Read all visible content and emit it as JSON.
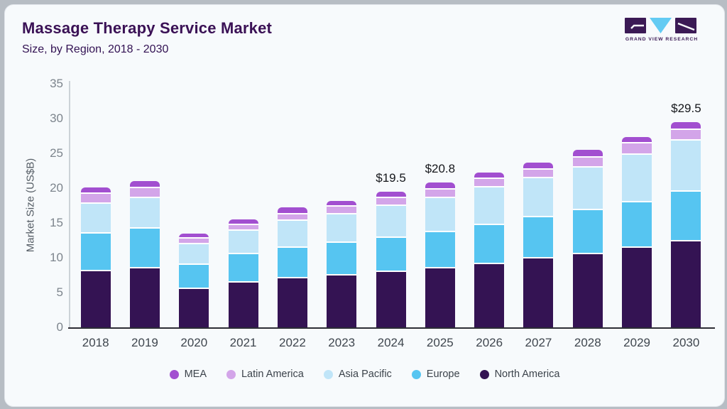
{
  "header": {
    "logo_text": "GRAND VIEW RESEARCH",
    "logo_colors": {
      "purple": "#3b1a55",
      "blue": "#63cbf3"
    }
  },
  "chart_data": {
    "type": "bar",
    "variant": "stacked",
    "title": "Massage Therapy Service Market",
    "subtitle": "Size, by Region, 2018 - 2030",
    "ylabel": "Market Size (US$B)",
    "ylim": [
      0,
      35
    ],
    "yticks": [
      0,
      5,
      10,
      15,
      20,
      25,
      30,
      35
    ],
    "grid": false,
    "legend_position": "bottom",
    "categories": [
      "2018",
      "2019",
      "2020",
      "2021",
      "2022",
      "2023",
      "2024",
      "2025",
      "2026",
      "2027",
      "2028",
      "2029",
      "2030"
    ],
    "series": [
      {
        "name": "North America",
        "color": "#341353",
        "values": [
          8.1,
          8.5,
          5.5,
          6.4,
          7.0,
          7.5,
          8.0,
          8.5,
          9.1,
          9.9,
          10.5,
          11.4,
          12.3
        ]
      },
      {
        "name": "Europe",
        "color": "#56c5f1",
        "values": [
          5.4,
          5.7,
          3.5,
          4.1,
          4.4,
          4.6,
          4.9,
          5.2,
          5.6,
          5.9,
          6.3,
          6.6,
          7.2
        ]
      },
      {
        "name": "Asia Pacific",
        "color": "#c0e5f8",
        "values": [
          4.3,
          4.4,
          2.9,
          3.4,
          3.9,
          4.15,
          4.6,
          4.9,
          5.4,
          5.6,
          6.2,
          6.8,
          7.3
        ]
      },
      {
        "name": "Latin America",
        "color": "#d3a5e9",
        "values": [
          1.4,
          1.4,
          0.85,
          0.8,
          0.9,
          1.05,
          1.1,
          1.2,
          1.2,
          1.3,
          1.4,
          1.6,
          1.6
        ]
      },
      {
        "name": "MEA",
        "color": "#a24fd0",
        "values": [
          0.9,
          1.0,
          0.75,
          0.8,
          1.0,
          0.9,
          0.9,
          1.0,
          0.9,
          1.0,
          1.1,
          1.0,
          1.1
        ]
      }
    ],
    "stack_order": "bottom-to-top",
    "bar_labels": {
      "2024": "$19.5",
      "2025": "$20.8",
      "2030": "$29.5"
    },
    "legend": [
      {
        "label": "MEA",
        "color": "#a24fd0"
      },
      {
        "label": "Latin America",
        "color": "#d3a5e9"
      },
      {
        "label": "Asia Pacific",
        "color": "#c0e5f8"
      },
      {
        "label": "Europe",
        "color": "#56c5f1"
      },
      {
        "label": "North America",
        "color": "#341353"
      }
    ]
  }
}
